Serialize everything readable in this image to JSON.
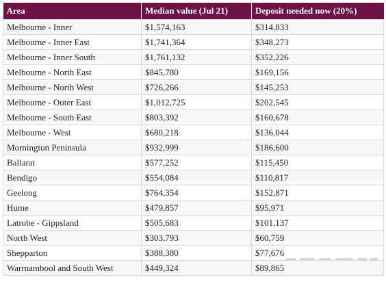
{
  "table": {
    "headers": [
      "Area",
      "Median value (Jul 21)",
      "Deposit needed now (20%)"
    ],
    "rows": [
      [
        "Melbourne - Inner",
        "$1,574,163",
        "$314,833"
      ],
      [
        "Melbourne - Inner East",
        "$1,741,364",
        "$348,273"
      ],
      [
        "Melbourne - Inner South",
        "$1,761,132",
        "$352,226"
      ],
      [
        "Melbourne - North East",
        "$845,780",
        "$169,156"
      ],
      [
        "Melbourne - North West",
        "$726,266",
        "$145,253"
      ],
      [
        "Melbourne - Outer East",
        "$1,012,725",
        "$202,545"
      ],
      [
        "Melbourne - South East",
        "$803,392",
        "$160,678"
      ],
      [
        "Melbourne - West",
        "$680,218",
        "$136,044"
      ],
      [
        "Mornington Peninsula",
        "$932,999",
        "$186,600"
      ],
      [
        "Ballarat",
        "$577,252",
        "$115,450"
      ],
      [
        "Bendigo",
        "$554,084",
        "$110,817"
      ],
      [
        "Geelong",
        "$764,354",
        "$152,871"
      ],
      [
        "Hume",
        "$479,857",
        "$95,971"
      ],
      [
        "Latrobe - Gippsland",
        "$505,683",
        "$101,137"
      ],
      [
        "North West",
        "$303,793",
        "$60,759"
      ],
      [
        "Shepparton",
        "$388,380",
        "$77,676"
      ],
      [
        "Warrnambool and South West",
        "$449,324",
        "$89,865"
      ]
    ]
  },
  "colors": {
    "header_background": "#6e1245",
    "header_text": "#ffffff",
    "row_stripe": "#f7f7f7",
    "grid_line": "#d8d8d8"
  }
}
